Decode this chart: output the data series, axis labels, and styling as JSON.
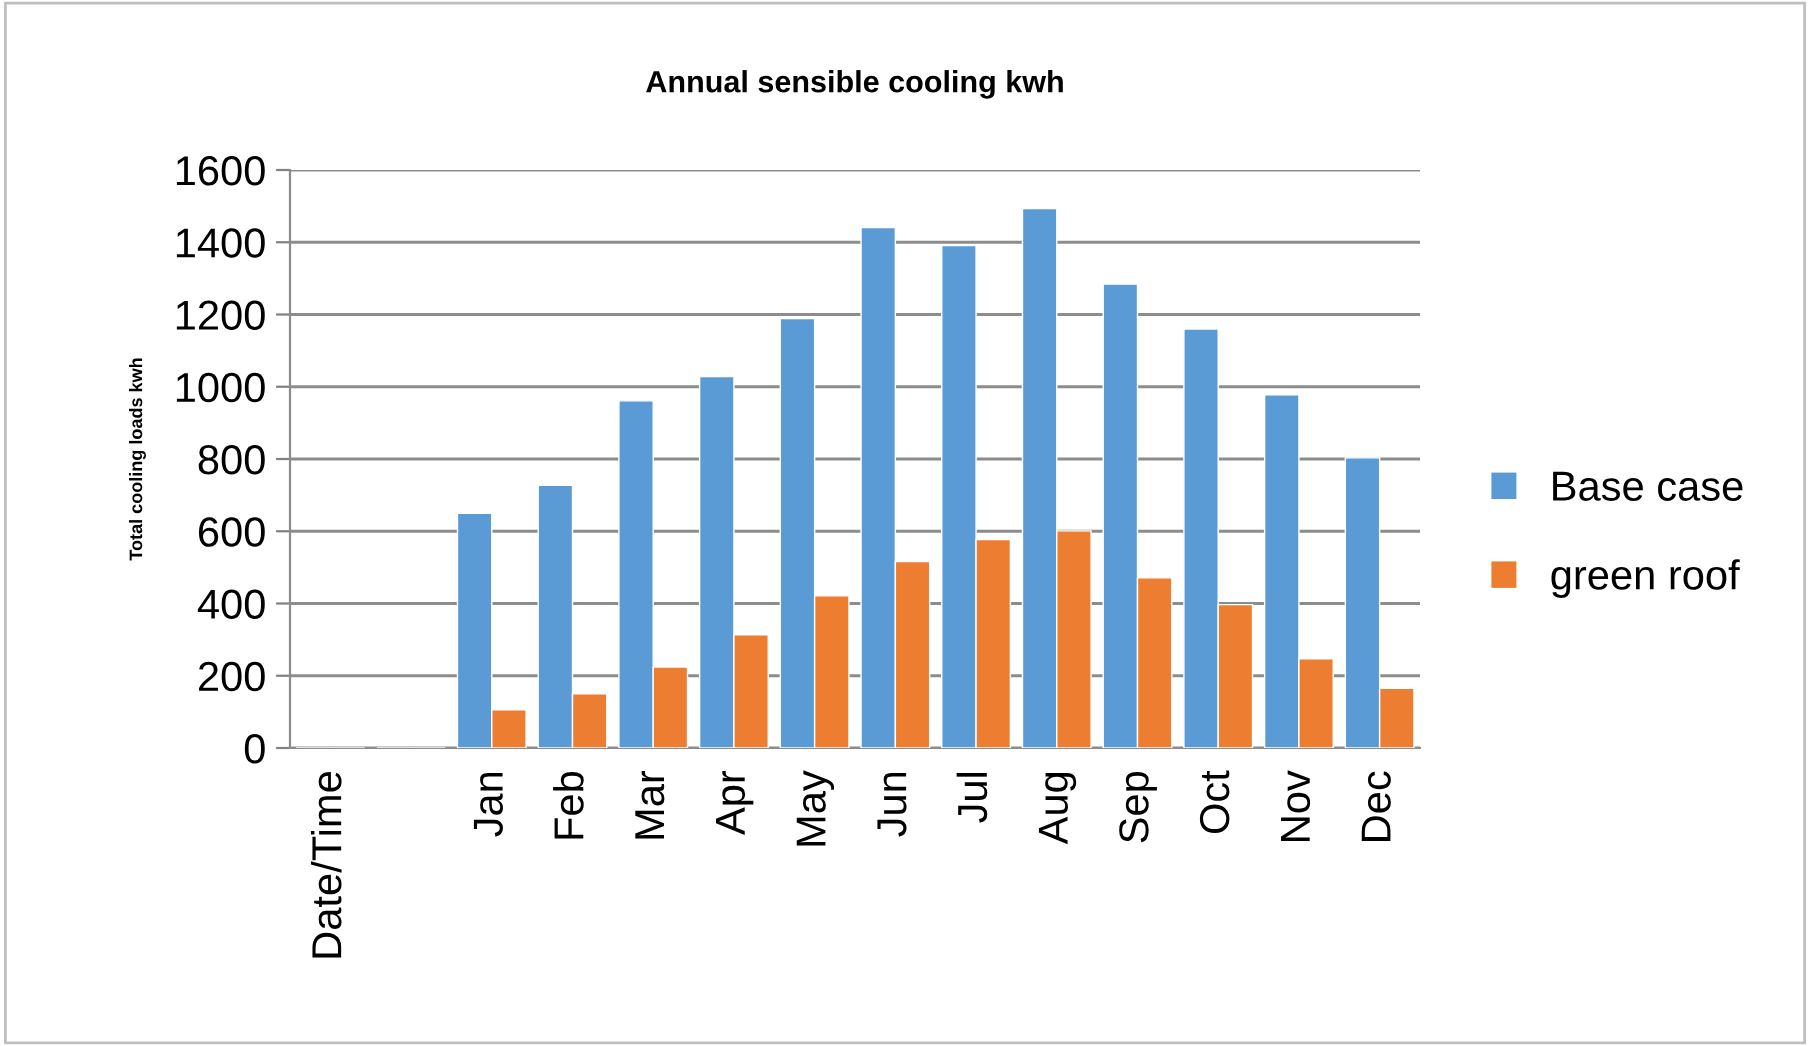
{
  "chart_data": {
    "type": "bar",
    "title": "Annual sensible cooling kwh",
    "ylabel": "Total cooling loads kwh",
    "categories": [
      "Date/Time",
      null,
      "Jan",
      "Feb",
      "Mar",
      "Apr",
      "May",
      "Jun",
      "Jul",
      "Aug",
      "Sep",
      "Oct",
      "Nov",
      "Dec"
    ],
    "series": [
      {
        "name": "Base case",
        "color": "#5b9bd5",
        "values": [
          null,
          null,
          650,
          727,
          961,
          1028,
          1189,
          1441,
          1391,
          1493,
          1284,
          1160,
          978,
          803
        ]
      },
      {
        "name": "green roof",
        "color": "#ed7d31",
        "values": [
          null,
          null,
          106,
          150,
          224,
          313,
          421,
          516,
          577,
          601,
          471,
          397,
          247,
          165
        ]
      }
    ],
    "ylim": [
      0,
      1600
    ],
    "yticks": [
      0,
      200,
      400,
      600,
      800,
      1000,
      1200,
      1400,
      1600
    ],
    "grid": "y",
    "legend": "right"
  }
}
